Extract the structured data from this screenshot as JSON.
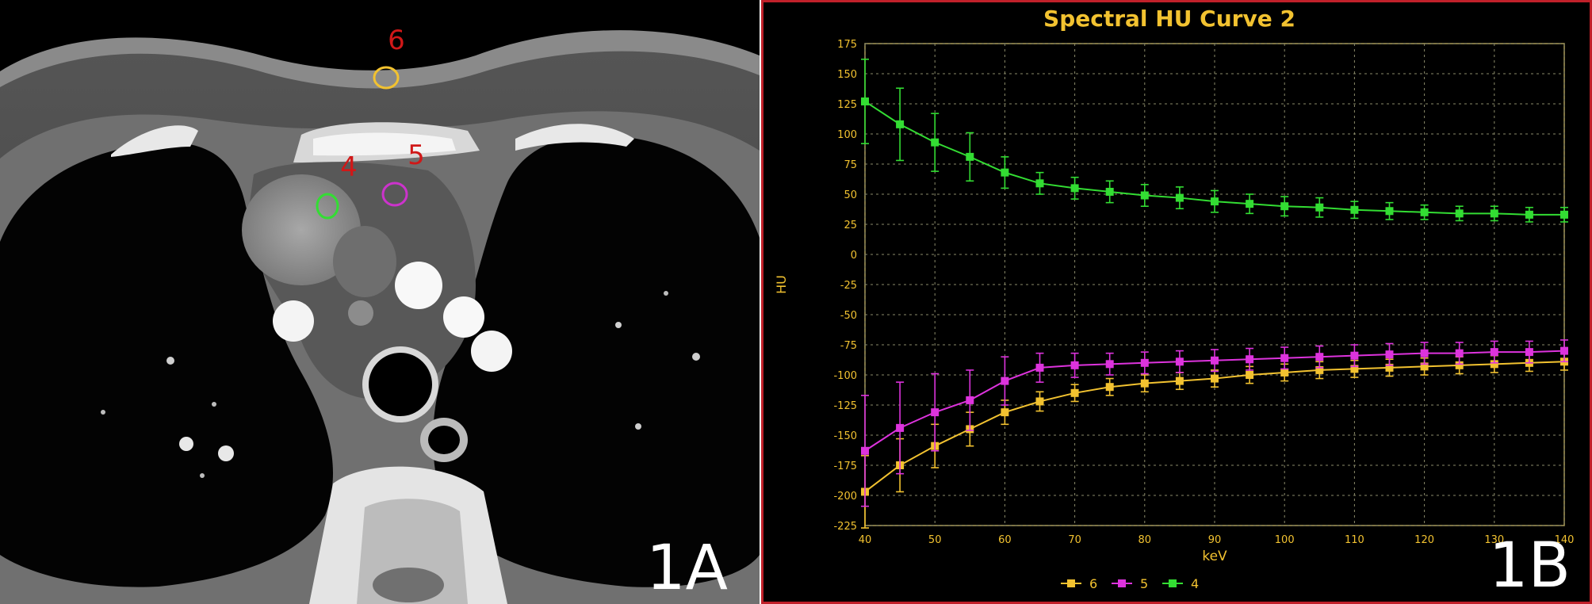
{
  "panel_a": {
    "label": "1A",
    "rois": [
      {
        "id": "6",
        "color": "#f2c230"
      },
      {
        "id": "4",
        "color": "#33dd33"
      },
      {
        "id": "5",
        "color": "#cc33cc"
      }
    ],
    "roi_label_color": "#d01818"
  },
  "panel_b": {
    "label": "1B",
    "border_color": "#c0202a"
  },
  "chart_data": {
    "type": "line",
    "title": "Spectral HU Curve 2",
    "xlabel": "keV",
    "ylabel": "HU",
    "xlim": [
      40,
      140
    ],
    "ylim": [
      -225,
      175
    ],
    "xticks": [
      40,
      50,
      60,
      70,
      80,
      90,
      100,
      110,
      120,
      130,
      140
    ],
    "yticks": [
      175,
      150,
      125,
      100,
      75,
      50,
      25,
      0,
      -25,
      -50,
      -75,
      -100,
      -125,
      -150,
      -175,
      -200,
      -225
    ],
    "x": [
      40,
      45,
      50,
      55,
      60,
      65,
      70,
      75,
      80,
      85,
      90,
      95,
      100,
      105,
      110,
      115,
      120,
      125,
      130,
      135,
      140
    ],
    "grid": true,
    "legend_position": "bottom-center",
    "series": [
      {
        "name": "6",
        "color": "#f2c230",
        "values": [
          -197,
          -175,
          -159,
          -145,
          -131,
          -122,
          -115,
          -110,
          -107,
          -105,
          -103,
          -100,
          -98,
          -96,
          -95,
          -94,
          -93,
          -92,
          -91,
          -90,
          -89
        ],
        "error": [
          30,
          22,
          18,
          14,
          10,
          8,
          7,
          7,
          7,
          7,
          7,
          7,
          7,
          7,
          7,
          7,
          7,
          7,
          7,
          7,
          7
        ]
      },
      {
        "name": "5",
        "color": "#dd33dd",
        "values": [
          -163,
          -144,
          -131,
          -121,
          -105,
          -94,
          -92,
          -91,
          -90,
          -89,
          -88,
          -87,
          -86,
          -85,
          -84,
          -83,
          -82,
          -82,
          -81,
          -81,
          -80
        ],
        "error": [
          46,
          38,
          32,
          25,
          20,
          12,
          10,
          9,
          9,
          9,
          9,
          9,
          9,
          9,
          9,
          9,
          9,
          9,
          9,
          9,
          9
        ]
      },
      {
        "name": "4",
        "color": "#33dd33",
        "values": [
          127,
          108,
          93,
          81,
          68,
          59,
          55,
          52,
          49,
          47,
          44,
          42,
          40,
          39,
          37,
          36,
          35,
          34,
          34,
          33,
          33
        ],
        "error": [
          35,
          30,
          24,
          20,
          13,
          9,
          9,
          9,
          9,
          9,
          9,
          8,
          8,
          8,
          7,
          7,
          6,
          6,
          6,
          6,
          6
        ]
      }
    ]
  }
}
